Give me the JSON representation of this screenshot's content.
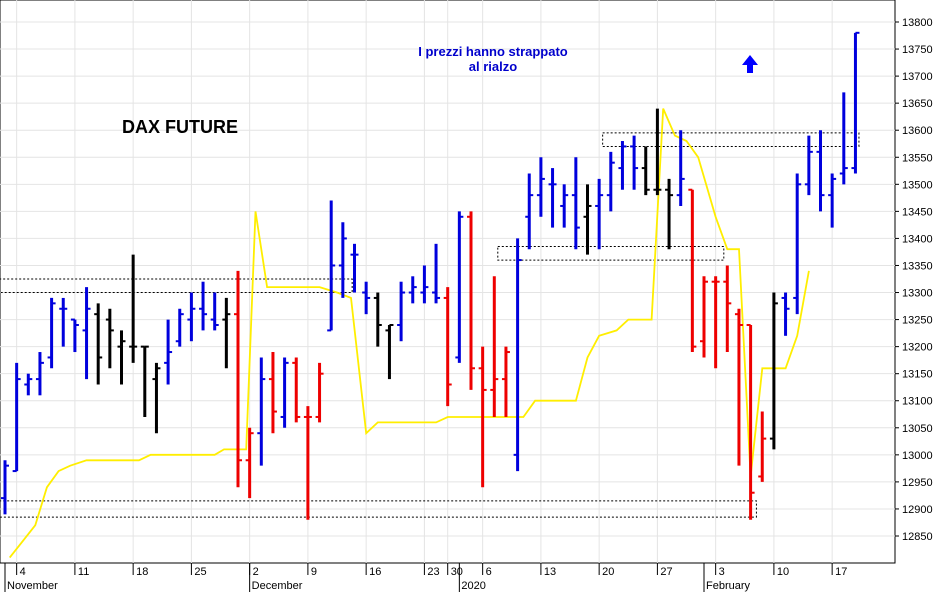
{
  "chart_data": {
    "type": "ohlc",
    "title": "DAX FUTURE",
    "annotation": "I prezzi hanno strappato\nal rialzo",
    "arrow": {
      "direction": "up",
      "color": "#0000ff"
    },
    "y_axis": {
      "position": "right",
      "min": 12810,
      "max": 13830,
      "ticks": [
        12850,
        12900,
        12950,
        13000,
        13050,
        13100,
        13150,
        13200,
        13250,
        13300,
        13350,
        13400,
        13450,
        13500,
        13550,
        13600,
        13650,
        13700,
        13750,
        13800
      ]
    },
    "x_axis": {
      "day_labels": [
        {
          "i": 1,
          "label": "4"
        },
        {
          "i": 6,
          "label": "11"
        },
        {
          "i": 11,
          "label": "18"
        },
        {
          "i": 16,
          "label": "25"
        },
        {
          "i": 21,
          "label": "2"
        },
        {
          "i": 26,
          "label": "9"
        },
        {
          "i": 31,
          "label": "16"
        },
        {
          "i": 36,
          "label": "23"
        },
        {
          "i": 38,
          "label": "30"
        },
        {
          "i": 41,
          "label": "6"
        },
        {
          "i": 46,
          "label": "13"
        },
        {
          "i": 51,
          "label": "20"
        },
        {
          "i": 56,
          "label": "27"
        },
        {
          "i": 61,
          "label": "3"
        },
        {
          "i": 66,
          "label": "10"
        },
        {
          "i": 71,
          "label": "17"
        }
      ],
      "month_labels": [
        {
          "i": 0,
          "label": "November"
        },
        {
          "i": 21,
          "label": "December"
        },
        {
          "i": 39,
          "label": "2020"
        },
        {
          "i": 60,
          "label": "February"
        }
      ]
    },
    "colors": {
      "up": "#0000dd",
      "down": "#ee0000",
      "neutral": "#000000",
      "line": "#ffee00",
      "box": "#000000"
    },
    "bars": [
      {
        "i": 0,
        "o": 12920,
        "h": 12990,
        "l": 12890,
        "c": 12980,
        "col": "up"
      },
      {
        "i": 1,
        "o": 12970,
        "h": 13170,
        "l": 12970,
        "c": 13140,
        "col": "up"
      },
      {
        "i": 2,
        "o": 13130,
        "h": 13150,
        "l": 13110,
        "c": 13140,
        "col": "up"
      },
      {
        "i": 3,
        "o": 13140,
        "h": 13190,
        "l": 13110,
        "c": 13170,
        "col": "up"
      },
      {
        "i": 4,
        "o": 13180,
        "h": 13290,
        "l": 13160,
        "c": 13280,
        "col": "up"
      },
      {
        "i": 5,
        "o": 13270,
        "h": 13290,
        "l": 13200,
        "c": 13270,
        "col": "up"
      },
      {
        "i": 6,
        "o": 13250,
        "h": 13250,
        "l": 13190,
        "c": 13240,
        "col": "up"
      },
      {
        "i": 7,
        "o": 13230,
        "h": 13310,
        "l": 13140,
        "c": 13270,
        "col": "up"
      },
      {
        "i": 8,
        "o": 13260,
        "h": 13280,
        "l": 13130,
        "c": 13180,
        "col": "neutral"
      },
      {
        "i": 9,
        "o": 13250,
        "h": 13270,
        "l": 13160,
        "c": 13230,
        "col": "neutral"
      },
      {
        "i": 10,
        "o": 13200,
        "h": 13230,
        "l": 13130,
        "c": 13210,
        "col": "neutral"
      },
      {
        "i": 11,
        "o": 13200,
        "h": 13370,
        "l": 13170,
        "c": 13200,
        "col": "neutral"
      },
      {
        "i": 12,
        "o": 13200,
        "h": 13200,
        "l": 13070,
        "c": 13200,
        "col": "neutral"
      },
      {
        "i": 13,
        "o": 13140,
        "h": 13170,
        "l": 13040,
        "c": 13160,
        "col": "neutral"
      },
      {
        "i": 14,
        "o": 13170,
        "h": 13250,
        "l": 13130,
        "c": 13190,
        "col": "up"
      },
      {
        "i": 15,
        "o": 13210,
        "h": 13270,
        "l": 13200,
        "c": 13260,
        "col": "up"
      },
      {
        "i": 16,
        "o": 13250,
        "h": 13300,
        "l": 13210,
        "c": 13270,
        "col": "up"
      },
      {
        "i": 17,
        "o": 13270,
        "h": 13320,
        "l": 13230,
        "c": 13260,
        "col": "up"
      },
      {
        "i": 18,
        "o": 13250,
        "h": 13300,
        "l": 13230,
        "c": 13240,
        "col": "up"
      },
      {
        "i": 19,
        "o": 13250,
        "h": 13290,
        "l": 13160,
        "c": 13260,
        "col": "neutral"
      },
      {
        "i": 20,
        "o": 13260,
        "h": 13340,
        "l": 12940,
        "c": 12990,
        "col": "down"
      },
      {
        "i": 21,
        "o": 12990,
        "h": 13050,
        "l": 12920,
        "c": 13040,
        "col": "down"
      },
      {
        "i": 22,
        "o": 13040,
        "h": 13180,
        "l": 12980,
        "c": 13140,
        "col": "up"
      },
      {
        "i": 23,
        "o": 13140,
        "h": 13190,
        "l": 13040,
        "c": 13080,
        "col": "down"
      },
      {
        "i": 24,
        "o": 13070,
        "h": 13180,
        "l": 13050,
        "c": 13170,
        "col": "up"
      },
      {
        "i": 25,
        "o": 13170,
        "h": 13180,
        "l": 13060,
        "c": 13070,
        "col": "down"
      },
      {
        "i": 26,
        "o": 13070,
        "h": 13090,
        "l": 12880,
        "c": 13070,
        "col": "down"
      },
      {
        "i": 27,
        "o": 13070,
        "h": 13170,
        "l": 13060,
        "c": 13150,
        "col": "down"
      },
      {
        "i": 28,
        "o": 13230,
        "h": 13470,
        "l": 13230,
        "c": 13350,
        "col": "up"
      },
      {
        "i": 29,
        "o": 13350,
        "h": 13430,
        "l": 13290,
        "c": 13400,
        "col": "up"
      },
      {
        "i": 30,
        "o": 13370,
        "h": 13390,
        "l": 13300,
        "c": 13370,
        "col": "up"
      },
      {
        "i": 31,
        "o": 13300,
        "h": 13320,
        "l": 13260,
        "c": 13290,
        "col": "up"
      },
      {
        "i": 32,
        "o": 13290,
        "h": 13300,
        "l": 13200,
        "c": 13240,
        "col": "neutral"
      },
      {
        "i": 33,
        "o": 13230,
        "h": 13240,
        "l": 13140,
        "c": 13240,
        "col": "neutral"
      },
      {
        "i": 34,
        "o": 13240,
        "h": 13320,
        "l": 13210,
        "c": 13300,
        "col": "up"
      },
      {
        "i": 35,
        "o": 13300,
        "h": 13330,
        "l": 13280,
        "c": 13310,
        "col": "up"
      },
      {
        "i": 36,
        "o": 13300,
        "h": 13350,
        "l": 13280,
        "c": 13310,
        "col": "up"
      },
      {
        "i": 37,
        "o": 13300,
        "h": 13390,
        "l": 13280,
        "c": 13290,
        "col": "up"
      },
      {
        "i": 38,
        "o": 13290,
        "h": 13310,
        "l": 13090,
        "c": 13130,
        "col": "down"
      },
      {
        "i": 39,
        "o": 13180,
        "h": 13450,
        "l": 13170,
        "c": 13440,
        "col": "up"
      },
      {
        "i": 40,
        "o": 13440,
        "h": 13450,
        "l": 13120,
        "c": 13160,
        "col": "down"
      },
      {
        "i": 41,
        "o": 13160,
        "h": 13200,
        "l": 12940,
        "c": 13120,
        "col": "down"
      },
      {
        "i": 42,
        "o": 13120,
        "h": 13330,
        "l": 13070,
        "c": 13140,
        "col": "down"
      },
      {
        "i": 43,
        "o": 13140,
        "h": 13200,
        "l": 13070,
        "c": 13190,
        "col": "down"
      },
      {
        "i": 44,
        "o": 13000,
        "h": 13400,
        "l": 12970,
        "c": 13360,
        "col": "up"
      },
      {
        "i": 45,
        "o": 13440,
        "h": 13520,
        "l": 13380,
        "c": 13480,
        "col": "up"
      },
      {
        "i": 46,
        "o": 13480,
        "h": 13550,
        "l": 13440,
        "c": 13510,
        "col": "up"
      },
      {
        "i": 47,
        "o": 13500,
        "h": 13530,
        "l": 13420,
        "c": 13500,
        "col": "up"
      },
      {
        "i": 48,
        "o": 13460,
        "h": 13500,
        "l": 13420,
        "c": 13480,
        "col": "up"
      },
      {
        "i": 49,
        "o": 13480,
        "h": 13550,
        "l": 13380,
        "c": 13420,
        "col": "up"
      },
      {
        "i": 50,
        "o": 13440,
        "h": 13500,
        "l": 13370,
        "c": 13460,
        "col": "neutral"
      },
      {
        "i": 51,
        "o": 13460,
        "h": 13510,
        "l": 13380,
        "c": 13480,
        "col": "up"
      },
      {
        "i": 52,
        "o": 13480,
        "h": 13560,
        "l": 13450,
        "c": 13540,
        "col": "up"
      },
      {
        "i": 53,
        "o": 13530,
        "h": 13580,
        "l": 13490,
        "c": 13570,
        "col": "up"
      },
      {
        "i": 54,
        "o": 13570,
        "h": 13590,
        "l": 13490,
        "c": 13530,
        "col": "up"
      },
      {
        "i": 55,
        "o": 13530,
        "h": 13570,
        "l": 13480,
        "c": 13490,
        "col": "neutral"
      },
      {
        "i": 56,
        "o": 13490,
        "h": 13640,
        "l": 13480,
        "c": 13490,
        "col": "neutral"
      },
      {
        "i": 57,
        "o": 13490,
        "h": 13510,
        "l": 13380,
        "c": 13480,
        "col": "neutral"
      },
      {
        "i": 58,
        "o": 13480,
        "h": 13600,
        "l": 13460,
        "c": 13510,
        "col": "up"
      },
      {
        "i": 59,
        "o": 13490,
        "h": 13490,
        "l": 13190,
        "c": 13200,
        "col": "down"
      },
      {
        "i": 60,
        "o": 13210,
        "h": 13330,
        "l": 13180,
        "c": 13320,
        "col": "down"
      },
      {
        "i": 61,
        "o": 13320,
        "h": 13330,
        "l": 13160,
        "c": 13320,
        "col": "down"
      },
      {
        "i": 62,
        "o": 13320,
        "h": 13350,
        "l": 13190,
        "c": 13280,
        "col": "down"
      },
      {
        "i": 63,
        "o": 13260,
        "h": 13270,
        "l": 12980,
        "c": 13240,
        "col": "down"
      },
      {
        "i": 64,
        "o": 13240,
        "h": 13240,
        "l": 12880,
        "c": 12930,
        "col": "down"
      },
      {
        "i": 65,
        "o": 12960,
        "h": 13080,
        "l": 12950,
        "c": 13030,
        "col": "down"
      },
      {
        "i": 66,
        "o": 13030,
        "h": 13300,
        "l": 13010,
        "c": 13280,
        "col": "neutral"
      },
      {
        "i": 67,
        "o": 13290,
        "h": 13300,
        "l": 13220,
        "c": 13270,
        "col": "up"
      },
      {
        "i": 68,
        "o": 13290,
        "h": 13520,
        "l": 13260,
        "c": 13500,
        "col": "up"
      },
      {
        "i": 69,
        "o": 13500,
        "h": 13590,
        "l": 13480,
        "c": 13560,
        "col": "up"
      },
      {
        "i": 70,
        "o": 13560,
        "h": 13600,
        "l": 13450,
        "c": 13480,
        "col": "up"
      },
      {
        "i": 71,
        "o": 13480,
        "h": 13520,
        "l": 13420,
        "c": 13510,
        "col": "up"
      },
      {
        "i": 72,
        "o": 13520,
        "h": 13670,
        "l": 13500,
        "c": 13530,
        "col": "up"
      },
      {
        "i": 73,
        "o": 13530,
        "h": 13780,
        "l": 13520,
        "c": 13780,
        "col": "up"
      }
    ],
    "yellow_line": [
      {
        "i": 0.4,
        "v": 12810
      },
      {
        "i": 1.5,
        "v": 12840
      },
      {
        "i": 2.6,
        "v": 12870
      },
      {
        "i": 3.6,
        "v": 12940
      },
      {
        "i": 4.6,
        "v": 12970
      },
      {
        "i": 5.6,
        "v": 12980
      },
      {
        "i": 7,
        "v": 12990
      },
      {
        "i": 11.5,
        "v": 12990
      },
      {
        "i": 12.5,
        "v": 13000
      },
      {
        "i": 18,
        "v": 13000
      },
      {
        "i": 18.8,
        "v": 13010
      },
      {
        "i": 20.7,
        "v": 13010
      },
      {
        "i": 21.5,
        "v": 13450
      },
      {
        "i": 22.5,
        "v": 13310
      },
      {
        "i": 27,
        "v": 13310
      },
      {
        "i": 28.5,
        "v": 13300
      },
      {
        "i": 29.7,
        "v": 13290
      },
      {
        "i": 31,
        "v": 13040
      },
      {
        "i": 32,
        "v": 13060
      },
      {
        "i": 37,
        "v": 13060
      },
      {
        "i": 38,
        "v": 13070
      },
      {
        "i": 44.5,
        "v": 13070
      },
      {
        "i": 45.5,
        "v": 13100
      },
      {
        "i": 49,
        "v": 13100
      },
      {
        "i": 50,
        "v": 13180
      },
      {
        "i": 51,
        "v": 13220
      },
      {
        "i": 52.5,
        "v": 13230
      },
      {
        "i": 53.5,
        "v": 13250
      },
      {
        "i": 55.5,
        "v": 13250
      },
      {
        "i": 56.5,
        "v": 13640
      },
      {
        "i": 57.5,
        "v": 13590
      },
      {
        "i": 58.5,
        "v": 13580
      },
      {
        "i": 59.5,
        "v": 13550
      },
      {
        "i": 61,
        "v": 13440
      },
      {
        "i": 62,
        "v": 13380
      },
      {
        "i": 63,
        "v": 13380
      },
      {
        "i": 64,
        "v": 12960
      },
      {
        "i": 65,
        "v": 13160
      },
      {
        "i": 67,
        "v": 13160
      },
      {
        "i": 68,
        "v": 13220
      },
      {
        "i": 69,
        "v": 13340
      }
    ],
    "boxes": [
      {
        "i0": -0.5,
        "i1": 29.8,
        "v0": 13300,
        "v1": 13325
      },
      {
        "i0": -0.5,
        "i1": 64.5,
        "v0": 12885,
        "v1": 12915
      },
      {
        "i0": 42.3,
        "i1": 61.7,
        "v0": 13360,
        "v1": 13385
      },
      {
        "i0": 51.3,
        "i1": 73.3,
        "v0": 13570,
        "v1": 13595
      }
    ]
  }
}
